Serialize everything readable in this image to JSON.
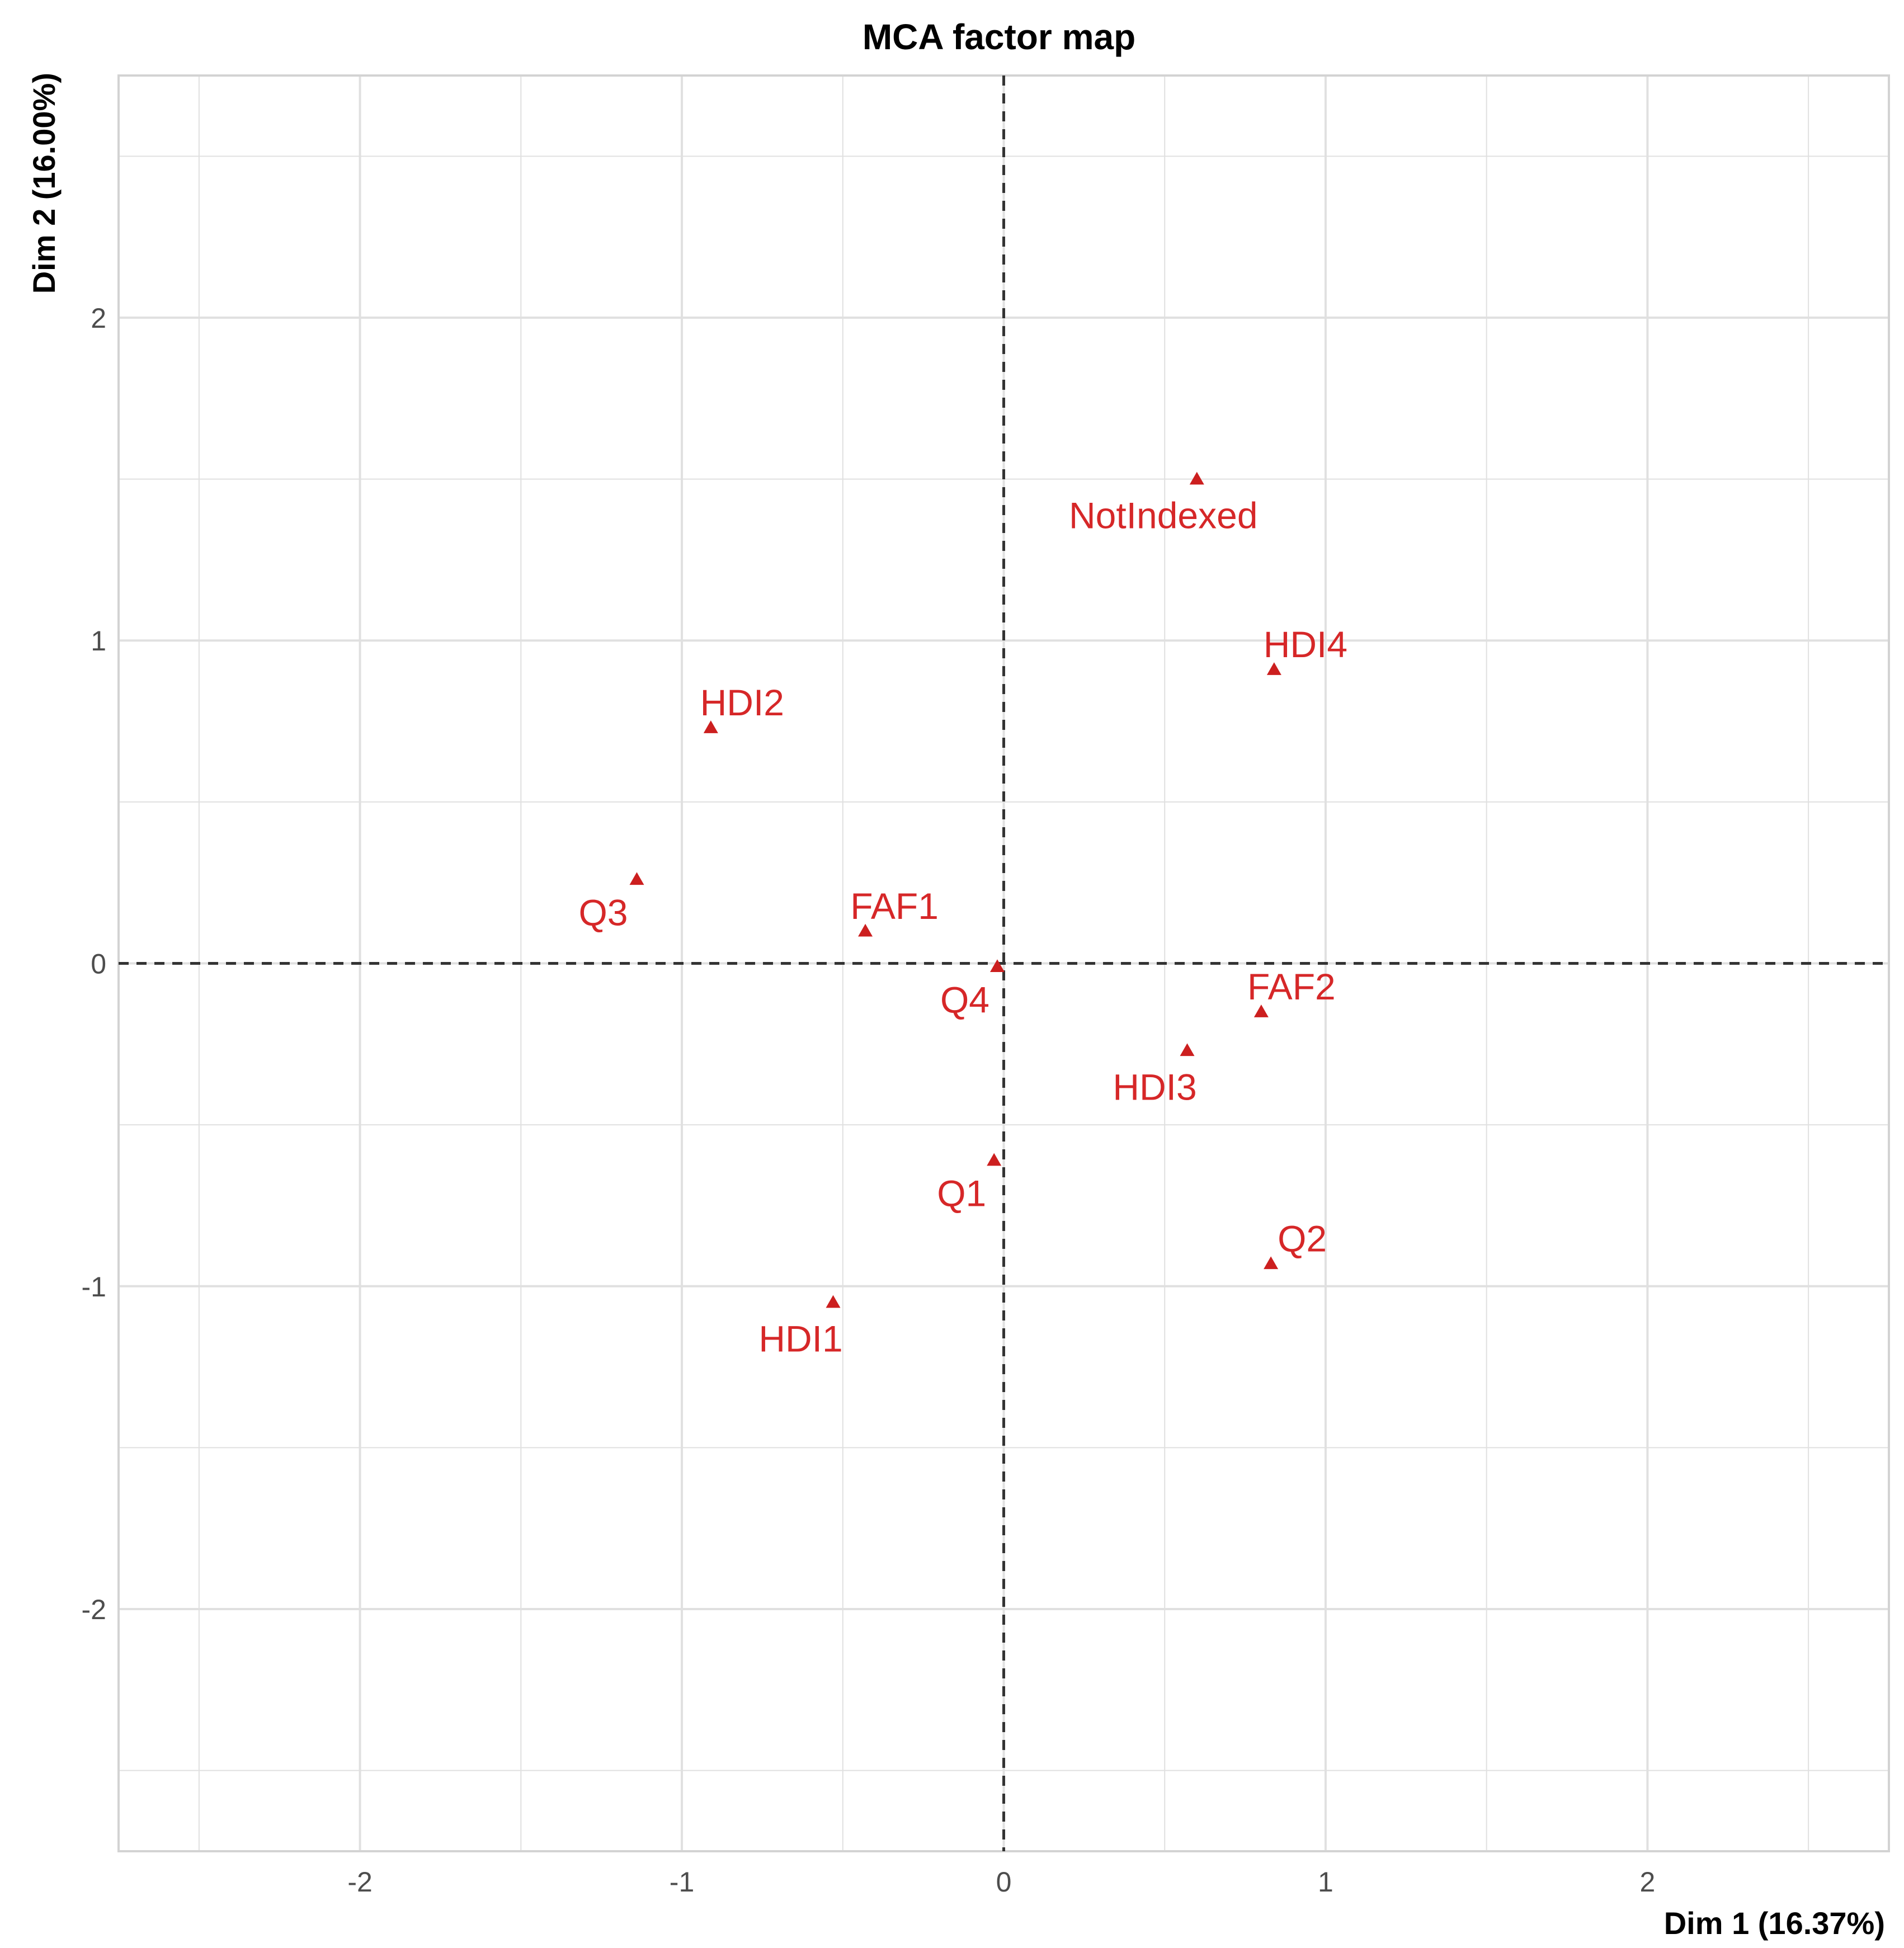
{
  "chart_data": {
    "type": "scatter",
    "title": "MCA factor map",
    "xlabel": "Dim 1 (16.37%)",
    "ylabel": "Dim 2 (16.00%)",
    "xlim": [
      -2.75,
      2.75
    ],
    "ylim": [
      -2.75,
      2.75
    ],
    "xticks": [
      -2,
      -1,
      0,
      1,
      2
    ],
    "yticks": [
      -2,
      -1,
      0,
      1,
      2
    ],
    "xtick_labels": [
      "-2",
      "-1",
      "0",
      "1",
      "2"
    ],
    "ytick_labels": [
      "-2",
      "-1",
      "0",
      "1",
      "2"
    ],
    "grid": true,
    "reference_lines": {
      "x": 0,
      "y": 0,
      "style": "dashed"
    },
    "marker": "triangle",
    "colors": {
      "points": "#cc1f1f",
      "labels": "#d62728",
      "grid": "#e0e0e0",
      "panel_border": "#d3d3d3",
      "reference_lines": "#333333"
    },
    "points": [
      {
        "label": "NotIndexed",
        "x": 0.6,
        "y": 1.5
      },
      {
        "label": "HDI4",
        "x": 0.84,
        "y": 0.91
      },
      {
        "label": "HDI2",
        "x": -0.91,
        "y": 0.73
      },
      {
        "label": "Q3",
        "x": -1.14,
        "y": 0.26
      },
      {
        "label": "FAF1",
        "x": -0.43,
        "y": 0.1
      },
      {
        "label": "Q4",
        "x": -0.02,
        "y": -0.01
      },
      {
        "label": "FAF2",
        "x": 0.8,
        "y": -0.15
      },
      {
        "label": "HDI3",
        "x": 0.57,
        "y": -0.27
      },
      {
        "label": "Q1",
        "x": -0.03,
        "y": -0.61
      },
      {
        "label": "Q2",
        "x": 0.83,
        "y": -0.93
      },
      {
        "label": "HDI1",
        "x": -0.53,
        "y": -1.05
      }
    ]
  }
}
